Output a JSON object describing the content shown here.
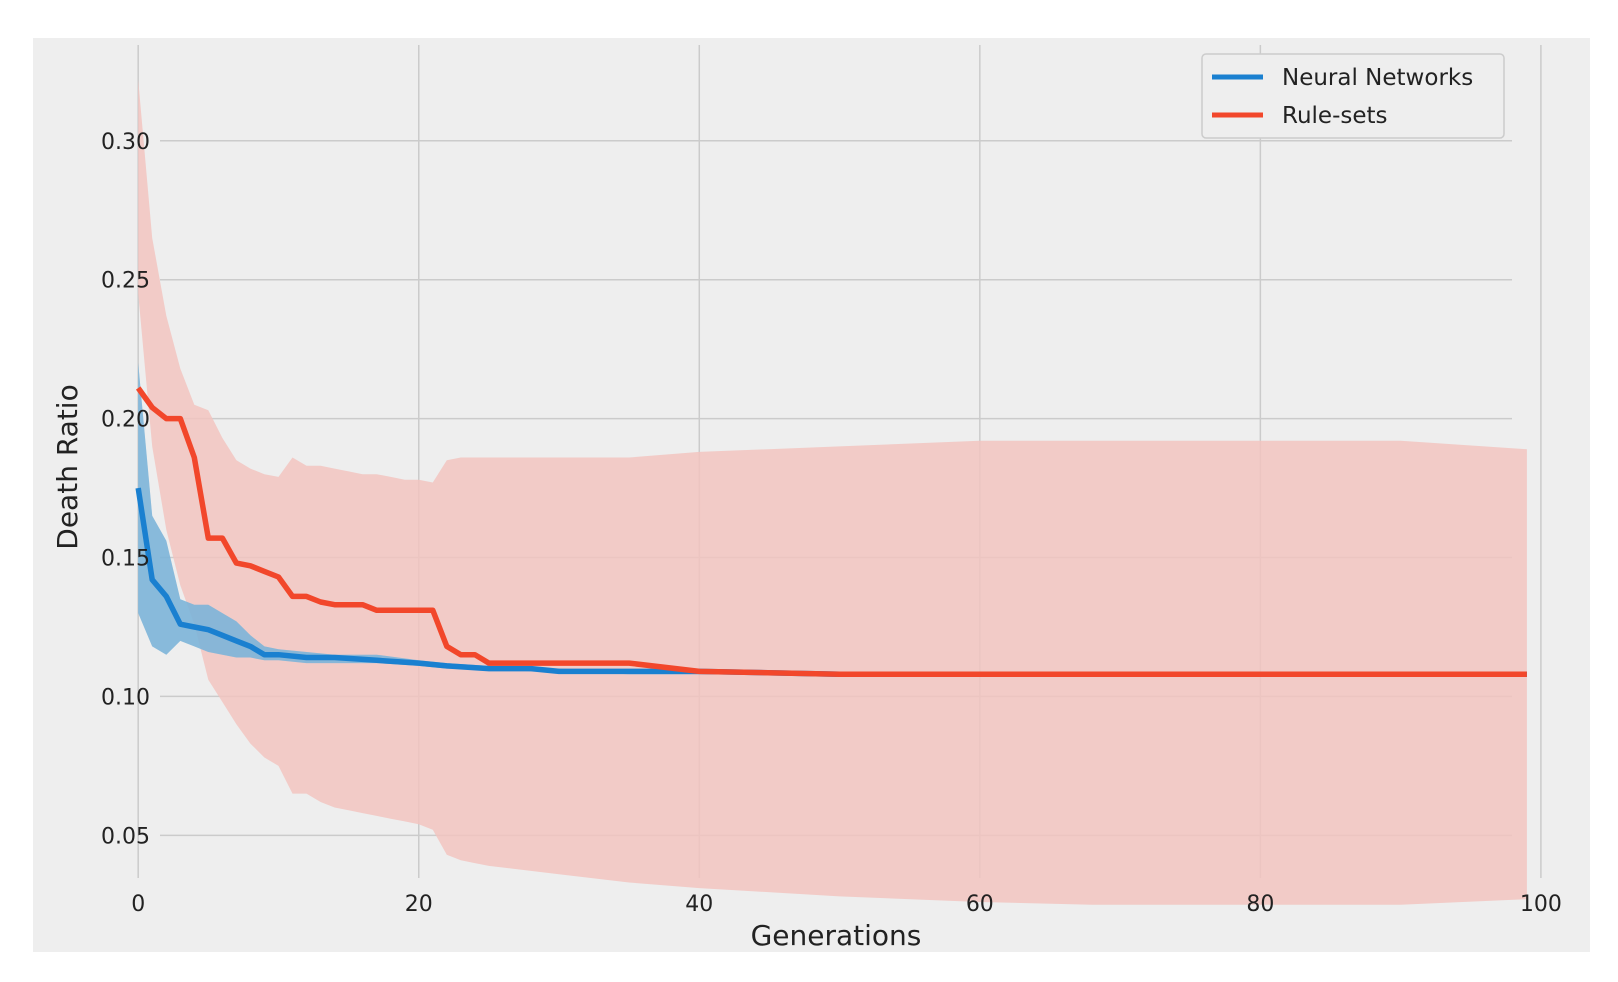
{
  "chart_data": {
    "type": "line",
    "title": "",
    "xlabel": "Generations",
    "ylabel": "Death Ratio",
    "xlim": [
      -7.5,
      103.5
    ],
    "ylim": [
      0.008,
      0.337
    ],
    "xticks": [
      0,
      20,
      40,
      60,
      80,
      100
    ],
    "xtick_labels": [
      "0",
      "20",
      "40",
      "60",
      "80",
      "100"
    ],
    "yticks": [
      0.05,
      0.1,
      0.15,
      0.2,
      0.25,
      0.3
    ],
    "ytick_labels": [
      "0.05",
      "0.10",
      "0.15",
      "0.20",
      "0.25",
      "0.30"
    ],
    "grid": true,
    "legend_position": "top-right",
    "colors": {
      "background": "#eeeeee",
      "grid": "#cbcbcb",
      "neural": "#1a80d0",
      "neural_band": "#86c3e6",
      "rules": "#f2472b",
      "rules_band": "#f2c4bf"
    },
    "series": [
      {
        "name": "Neural Networks",
        "color": "#1a80d0",
        "x": [
          0,
          1,
          2,
          3,
          4,
          5,
          6,
          7,
          8,
          9,
          10,
          12,
          14,
          17,
          20,
          22,
          25,
          28,
          30,
          35,
          40,
          50,
          60,
          70,
          80,
          90,
          99
        ],
        "values": [
          0.175,
          0.142,
          0.136,
          0.126,
          0.125,
          0.124,
          0.122,
          0.12,
          0.118,
          0.115,
          0.115,
          0.114,
          0.114,
          0.113,
          0.112,
          0.111,
          0.11,
          0.11,
          0.109,
          0.109,
          0.109,
          0.108,
          0.108,
          0.108,
          0.108,
          0.108,
          0.108
        ],
        "upper": [
          0.22,
          0.165,
          0.156,
          0.135,
          0.133,
          0.133,
          0.13,
          0.127,
          0.122,
          0.118,
          0.117,
          0.116,
          0.115,
          0.115,
          0.113,
          0.112,
          0.111,
          0.11,
          0.11,
          0.109,
          0.109,
          0.108,
          0.108,
          0.108,
          0.108,
          0.108,
          0.108
        ],
        "lower": [
          0.13,
          0.118,
          0.115,
          0.12,
          0.118,
          0.116,
          0.115,
          0.114,
          0.114,
          0.113,
          0.113,
          0.112,
          0.112,
          0.112,
          0.111,
          0.11,
          0.11,
          0.109,
          0.109,
          0.108,
          0.108,
          0.108,
          0.108,
          0.108,
          0.108,
          0.108,
          0.108
        ]
      },
      {
        "name": "Rule-sets",
        "color": "#f2472b",
        "x": [
          0,
          1,
          2,
          3,
          4,
          5,
          6,
          7,
          8,
          9,
          10,
          11,
          12,
          13,
          14,
          15,
          16,
          17,
          18,
          19,
          20,
          21,
          22,
          23,
          24,
          25,
          30,
          35,
          40,
          50,
          60,
          68,
          70,
          80,
          90,
          99
        ],
        "values": [
          0.211,
          0.204,
          0.2,
          0.2,
          0.186,
          0.157,
          0.157,
          0.148,
          0.147,
          0.145,
          0.143,
          0.136,
          0.136,
          0.134,
          0.133,
          0.133,
          0.133,
          0.131,
          0.131,
          0.131,
          0.131,
          0.131,
          0.118,
          0.115,
          0.115,
          0.112,
          0.112,
          0.112,
          0.109,
          0.108,
          0.108,
          0.108,
          0.108,
          0.108,
          0.108,
          0.108
        ],
        "upper": [
          0.322,
          0.265,
          0.237,
          0.218,
          0.205,
          0.203,
          0.193,
          0.185,
          0.182,
          0.18,
          0.179,
          0.186,
          0.183,
          0.183,
          0.182,
          0.181,
          0.18,
          0.18,
          0.179,
          0.178,
          0.178,
          0.177,
          0.185,
          0.186,
          0.186,
          0.186,
          0.186,
          0.186,
          0.188,
          0.19,
          0.192,
          0.192,
          0.192,
          0.192,
          0.192,
          0.189
        ],
        "lower": [
          0.245,
          0.19,
          0.16,
          0.14,
          0.126,
          0.106,
          0.098,
          0.09,
          0.083,
          0.078,
          0.075,
          0.065,
          0.065,
          0.062,
          0.06,
          0.059,
          0.058,
          0.057,
          0.056,
          0.055,
          0.054,
          0.052,
          0.043,
          0.041,
          0.04,
          0.039,
          0.036,
          0.033,
          0.031,
          0.028,
          0.026,
          0.025,
          0.025,
          0.025,
          0.025,
          0.027
        ]
      }
    ]
  }
}
